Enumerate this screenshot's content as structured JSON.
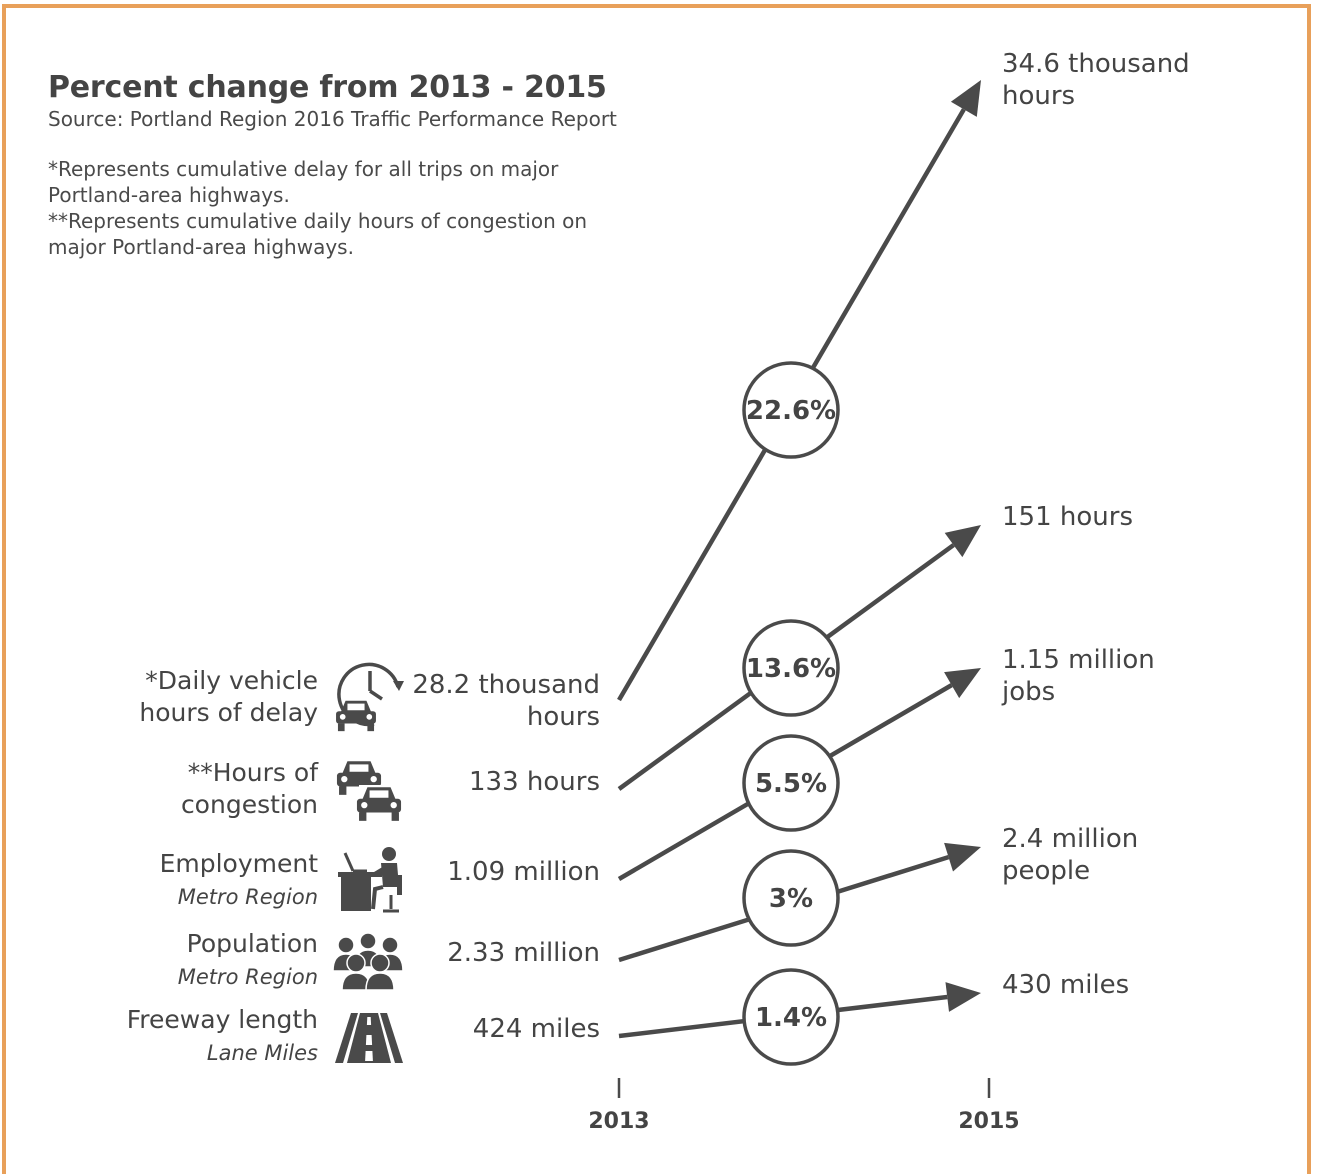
{
  "header": {
    "title": "Percent change from 2013 - 2015",
    "source": "Source: Portland Region 2016 Traffic Performance Report",
    "notes": [
      "*Represents cumulative delay for all trips on major",
      "Portland-area highways.",
      "**Represents cumulative daily hours of congestion on",
      "major Portland-area highways."
    ]
  },
  "colors": {
    "border": "#e8a05a",
    "ink": "#4a4a4a"
  },
  "chart_data": {
    "type": "line",
    "x": [
      "2013",
      "2015"
    ],
    "series": [
      {
        "name_lines": [
          "*Daily vehicle",
          "hours of delay"
        ],
        "subtitle": "",
        "icon": "clock-car-icon",
        "start_label": [
          "28.2 thousand",
          "hours"
        ],
        "end_label": [
          "34.6 thousand",
          "hours"
        ],
        "change": "22.6%",
        "start": 28.2,
        "end": 34.6,
        "unit": "thousand hours"
      },
      {
        "name_lines": [
          "**Hours of",
          "congestion"
        ],
        "subtitle": "",
        "icon": "cars-icon",
        "start_label": [
          "133 hours"
        ],
        "end_label": [
          "151 hours"
        ],
        "change": "13.6%",
        "start": 133,
        "end": 151,
        "unit": "hours"
      },
      {
        "name_lines": [
          "Employment"
        ],
        "subtitle": "Metro Region",
        "icon": "desk-worker-icon",
        "start_label": [
          "1.09 million"
        ],
        "end_label": [
          "1.15 million",
          "jobs"
        ],
        "change": "5.5%",
        "start": 1.09,
        "end": 1.15,
        "unit": "million jobs"
      },
      {
        "name_lines": [
          "Population"
        ],
        "subtitle": "Metro Region",
        "icon": "people-group-icon",
        "start_label": [
          "2.33 million"
        ],
        "end_label": [
          "2.4 million",
          "people"
        ],
        "change": "3%",
        "start": 2.33,
        "end": 2.4,
        "unit": "million people"
      },
      {
        "name_lines": [
          "Freeway length"
        ],
        "subtitle": "Lane Miles",
        "icon": "road-icon",
        "start_label": [
          "424 miles"
        ],
        "end_label": [
          "430 miles"
        ],
        "change": "1.4%",
        "start": 424,
        "end": 430,
        "unit": "miles"
      }
    ]
  }
}
